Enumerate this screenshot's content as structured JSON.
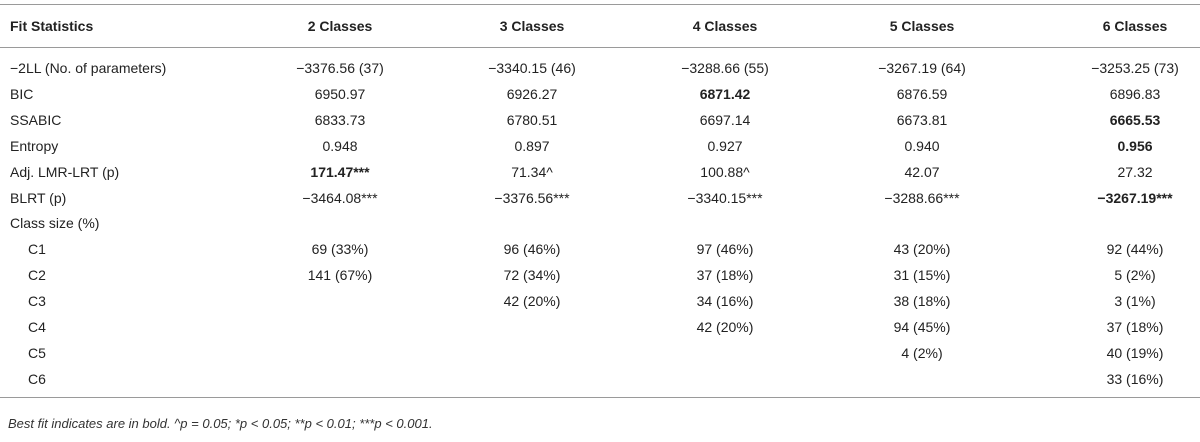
{
  "table": {
    "header": [
      "Fit Statistics",
      "2 Classes",
      "3 Classes",
      "4 Classes",
      "5 Classes",
      "6 Classes"
    ],
    "rows": [
      {
        "label": "−2LL (No. of parameters)",
        "cells": [
          "−3376.56 (37)",
          "−3340.15 (46)",
          "−3288.66 (55)",
          "−3267.19 (64)",
          "−3253.25 (73)"
        ]
      },
      {
        "label": "BIC",
        "cells": [
          "6950.97",
          "6926.27",
          {
            "text": "6871.42",
            "bold": true
          },
          "6876.59",
          "6896.83"
        ]
      },
      {
        "label": "SSABIC",
        "cells": [
          "6833.73",
          "6780.51",
          "6697.14",
          "6673.81",
          {
            "text": "6665.53",
            "bold": true
          }
        ]
      },
      {
        "label": "Entropy",
        "cells": [
          "0.948",
          "0.897",
          "0.927",
          "0.940",
          {
            "text": "0.956",
            "bold": true
          }
        ]
      },
      {
        "label": "Adj. LMR-LRT (p)",
        "cells": [
          {
            "text": "171.47***",
            "bold": true
          },
          "71.34^",
          "100.88^",
          "42.07",
          "27.32"
        ]
      },
      {
        "label": "BLRT (p)",
        "cells": [
          "−3464.08***",
          "−3376.56***",
          "−3340.15***",
          "−3288.66***",
          {
            "text": "−3267.19***",
            "bold": true
          }
        ]
      },
      {
        "label": "Class size (%)",
        "subrows": [
          {
            "label": "C1",
            "cells": [
              "69 (33%)",
              "96 (46%)",
              "97 (46%)",
              "43 (20%)",
              "92 (44%)"
            ]
          },
          {
            "label": "C2",
            "cells": [
              "141 (67%)",
              "72 (34%)",
              "37 (18%)",
              "31 (15%)",
              "5 (2%)"
            ]
          },
          {
            "label": "C3",
            "cells": [
              null,
              "42 (20%)",
              "34 (16%)",
              "38 (18%)",
              "3 (1%)"
            ]
          },
          {
            "label": "C4",
            "cells": [
              null,
              null,
              "42 (20%)",
              "94 (45%)",
              "37 (18%)"
            ]
          },
          {
            "label": "C5",
            "cells": [
              null,
              null,
              null,
              "4 (2%)",
              "40 (19%)"
            ]
          },
          {
            "label": "C6",
            "cells": [
              null,
              null,
              null,
              null,
              "33 (16%)"
            ]
          }
        ]
      }
    ],
    "footnote": "Best fit indicates are in bold. ^p = 0.05; *p < 0.05; **p < 0.01; ***p < 0.001."
  }
}
